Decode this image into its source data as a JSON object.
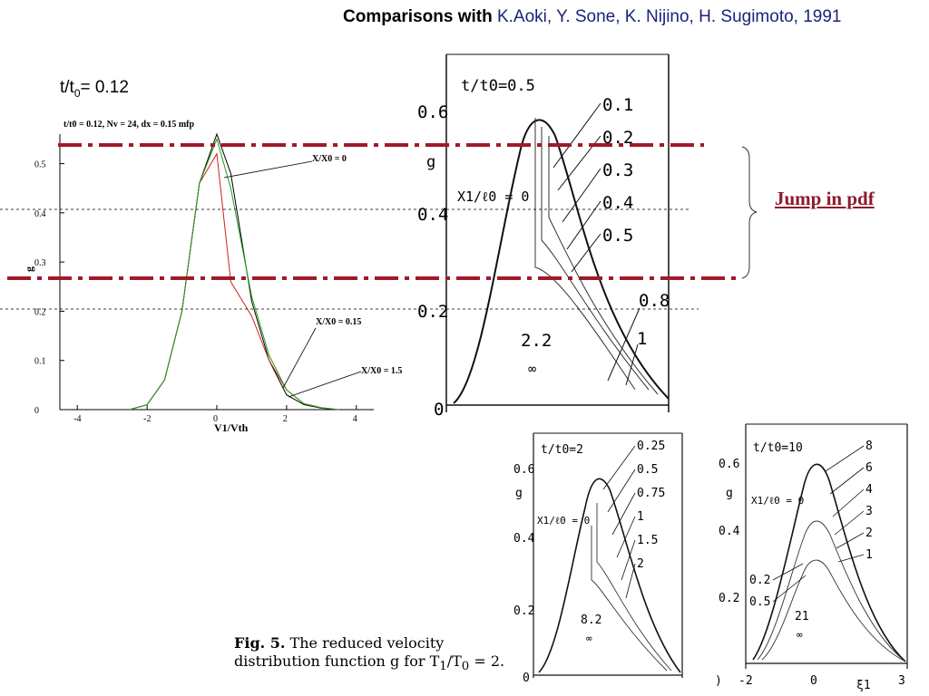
{
  "slide": {
    "title_bold": "Comparisons with",
    "title_names": " K.Aoki, Y. Sone, K. Nijino, H. Sugimoto,  1991",
    "t_label_main": "t/t",
    "t_label_sub": "0",
    "t_label_rest": "= 0.12",
    "jump_label": "Jump in pdf",
    "caption_fig": "Fig.  5.",
    "caption_text": " The reduced velocity distribution function g for T",
    "caption_sub1": "1",
    "caption_mid": "/T",
    "caption_sub0": "0",
    "caption_end": " = 2."
  },
  "colors": {
    "title_names": "#1a237e",
    "dash_dot": "#a01a2a",
    "jump_label": "#8e1a2a"
  },
  "chart_data": [
    {
      "type": "line",
      "title": "t/t0 = 0.12, Nv = 24, dx = 0.15 mfp",
      "xlabel": "V1/Vth",
      "ylabel": "g",
      "xlim": [
        -4.5,
        4.5
      ],
      "ylim": [
        0,
        0.56
      ],
      "xticks": [
        -4,
        -2,
        0,
        2,
        4
      ],
      "yticks": [
        0,
        0.1,
        0.2,
        0.3,
        0.4,
        0.5
      ],
      "series": [
        {
          "name": "X/X0 = 0",
          "color": "#000000",
          "x": [
            -2.5,
            -2,
            -1.5,
            -1,
            -0.5,
            0,
            0.4,
            1,
            1.5,
            2,
            2.5,
            3,
            3.5
          ],
          "y": [
            0,
            0.01,
            0.06,
            0.2,
            0.46,
            0.56,
            0.48,
            0.22,
            0.1,
            0.03,
            0.01,
            0.003,
            0
          ]
        },
        {
          "name": "X/X0 = 0.15",
          "color": "#d02020",
          "x": [
            -2.5,
            -2,
            -1.5,
            -1,
            -0.5,
            0,
            0.4,
            1,
            1.5,
            2,
            2.5,
            3,
            3.5
          ],
          "y": [
            0,
            0.01,
            0.06,
            0.2,
            0.46,
            0.52,
            0.26,
            0.19,
            0.1,
            0.04,
            0.012,
            0.004,
            0
          ]
        },
        {
          "name": "X/X0 = 1.5",
          "color": "#20a020",
          "x": [
            -2.5,
            -2,
            -1.5,
            -1,
            -0.5,
            0,
            0.4,
            1,
            1.5,
            2,
            2.5,
            3,
            3.5
          ],
          "y": [
            0,
            0.01,
            0.06,
            0.2,
            0.46,
            0.55,
            0.45,
            0.23,
            0.11,
            0.04,
            0.012,
            0.004,
            0
          ]
        }
      ],
      "annotations": [
        "X/X0 = 0",
        "X/X0 = 0.15",
        "X/X0 = 1.5"
      ]
    },
    {
      "type": "line",
      "panel": "scanned figure",
      "title": "t/t0=0.5",
      "ylabel": "g",
      "yticks": [
        "0",
        "0.2",
        "0.4",
        "0.6"
      ],
      "curve_labels": [
        "0.1",
        "0.2",
        "0.3",
        "0.4",
        "0.5",
        "0.8",
        "1",
        "2.2",
        "∞"
      ],
      "axis_note": "X1/ℓ0 = 0"
    },
    {
      "type": "line",
      "panel": "scanned figure",
      "title": "t/t0=2",
      "ylabel": "g",
      "yticks": [
        "0",
        "0.2",
        "0.4",
        "0.6"
      ],
      "curve_labels": [
        "0.25",
        "0.5",
        "0.75",
        "1",
        "1.5",
        "2",
        "8.2",
        "∞"
      ],
      "axis_note": "X1/ℓ0 = 0"
    },
    {
      "type": "line",
      "panel": "scanned figure",
      "title": "t/t0=10",
      "ylabel": "g",
      "xlabel": "ξ1",
      "yticks": [
        "0.2",
        "0.4",
        "0.6"
      ],
      "xticks": [
        "-2",
        "0",
        "3"
      ],
      "curve_labels": [
        "8",
        "6",
        "4",
        "3",
        "2",
        "1",
        "0.2",
        "0.5",
        "21",
        "∞"
      ],
      "axis_note": "X1/ℓ0 = 0"
    }
  ]
}
